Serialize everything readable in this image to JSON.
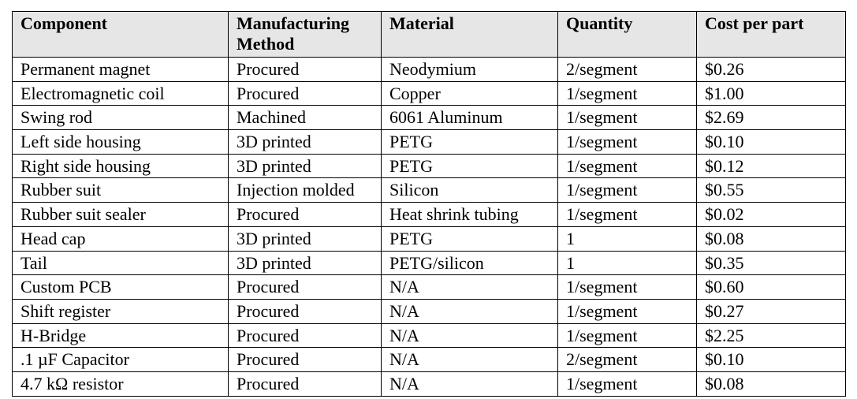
{
  "table": {
    "headers": [
      "Component",
      "Manufacturing Method",
      "Material",
      "Quantity",
      "Cost per part"
    ],
    "rows": [
      [
        "Permanent magnet",
        "Procured",
        "Neodymium",
        "2/segment",
        "$0.26"
      ],
      [
        "Electromagnetic coil",
        "Procured",
        "Copper",
        "1/segment",
        "$1.00"
      ],
      [
        "Swing rod",
        "Machined",
        "6061 Aluminum",
        "1/segment",
        "$2.69"
      ],
      [
        "Left side housing",
        "3D printed",
        "PETG",
        "1/segment",
        "$0.10"
      ],
      [
        "Right side housing",
        "3D printed",
        "PETG",
        "1/segment",
        "$0.12"
      ],
      [
        "Rubber suit",
        "Injection molded",
        "Silicon",
        "1/segment",
        "$0.55"
      ],
      [
        "Rubber suit sealer",
        "Procured",
        "Heat shrink tubing",
        "1/segment",
        "$0.02"
      ],
      [
        "Head cap",
        "3D printed",
        "PETG",
        "1",
        "$0.08"
      ],
      [
        "Tail",
        "3D printed",
        "PETG/silicon",
        "1",
        "$0.35"
      ],
      [
        "Custom PCB",
        "Procured",
        "N/A",
        "1/segment",
        "$0.60"
      ],
      [
        "Shift register",
        "Procured",
        "N/A",
        "1/segment",
        "$0.27"
      ],
      [
        "H-Bridge",
        "Procured",
        "N/A",
        "1/segment",
        "$2.25"
      ],
      [
        ".1 µF Capacitor",
        "Procured",
        "N/A",
        "2/segment",
        "$0.10"
      ],
      [
        "4.7 kΩ resistor",
        "Procured",
        "N/A",
        "1/segment",
        "$0.08"
      ]
    ]
  }
}
